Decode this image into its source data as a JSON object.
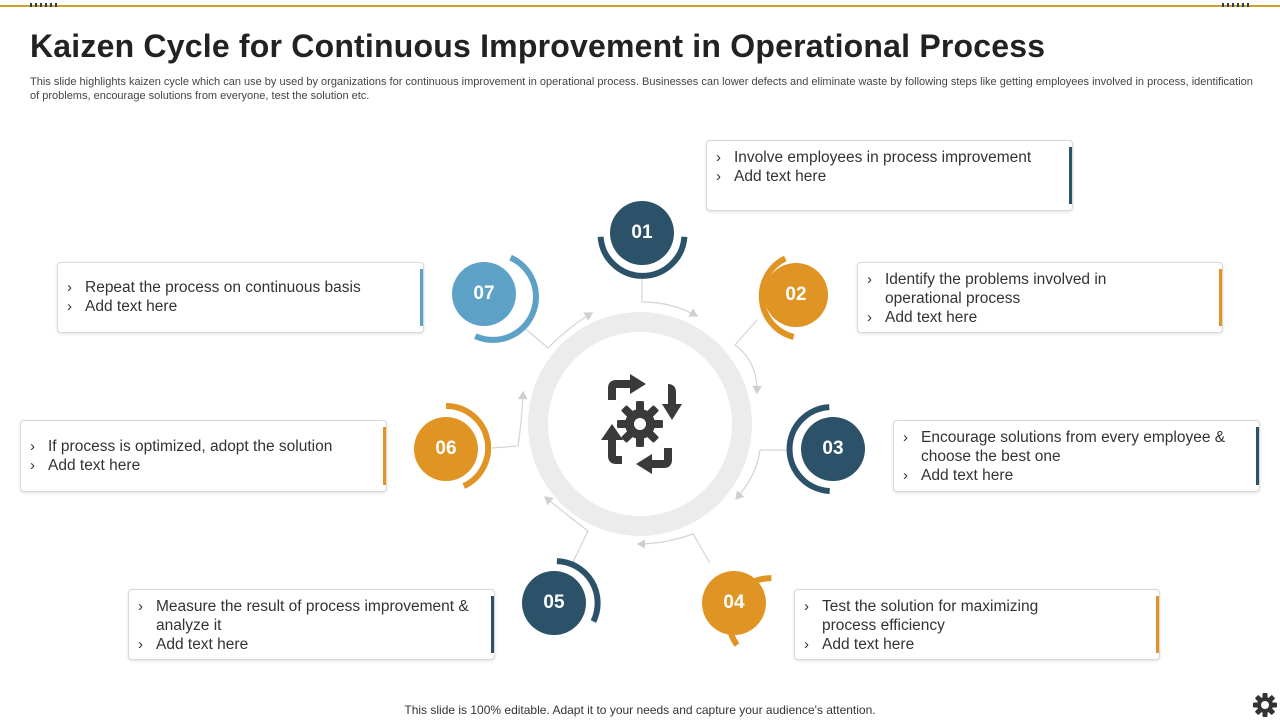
{
  "title": "Kaizen Cycle for Continuous Improvement in Operational Process",
  "subtitle": "This slide highlights kaizen cycle which can use by used by organizations for continuous improvement in operational process. Businesses can lower defects and eliminate waste by following steps like getting employees involved in process, identification of problems, encourage solutions from everyone, test the solution etc.",
  "colors": {
    "dark": "#2b5269",
    "orange": "#e09423",
    "light": "#5da2c6",
    "accent_line": "#c9a227"
  },
  "center_icon": "cycle-gear-icon",
  "steps": [
    {
      "number": "01",
      "color": "#2b5269",
      "bullets": [
        "Involve  employees in process improvement",
        "Add text here"
      ]
    },
    {
      "number": "02",
      "color": "#e09423",
      "bullets": [
        "Identify  the problems involved in operational process",
        "Add text here"
      ]
    },
    {
      "number": "03",
      "color": "#2b5269",
      "bullets": [
        "Encourage solutions from every employee & choose the best one",
        "Add text here"
      ]
    },
    {
      "number": "04",
      "color": "#e09423",
      "bullets": [
        "Test the solution for maximizing process efficiency",
        "Add text here"
      ]
    },
    {
      "number": "05",
      "color": "#2b5269",
      "bullets": [
        "Measure the result  of process improvement & analyze  it",
        "Add text here"
      ]
    },
    {
      "number": "06",
      "color": "#e09423",
      "bullets": [
        "If process is optimized, adopt the solution",
        "Add text here"
      ]
    },
    {
      "number": "07",
      "color": "#5da2c6",
      "bullets": [
        "Repeat the process on continuous basis",
        "Add text here"
      ]
    }
  ],
  "footer": "This slide is 100% editable. Adapt it to your needs and capture your audience's attention.",
  "corner_icon": "gear-icon"
}
